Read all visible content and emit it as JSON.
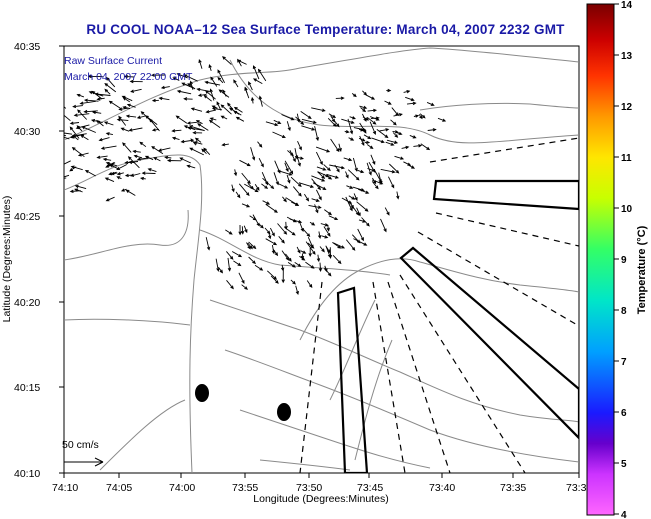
{
  "title": "RU COOL  NOAA–12  Sea Surface Temperature:  March 04, 2007 2232 GMT",
  "legend": {
    "line1": "Raw Surface Current",
    "line2": "March 04, 2007 22:00 GMT"
  },
  "scale_label": "50 cm/s",
  "x_axis": {
    "label": "Longitude (Degrees:Minutes)",
    "ticks": [
      "74:10",
      "74:05",
      "74:00",
      "73:55",
      "73:50",
      "73:45",
      "73:40",
      "73:35",
      "73:3"
    ]
  },
  "y_axis": {
    "label": "Latitude (Degrees:Minutes)",
    "ticks": [
      "40:35",
      "40:30",
      "40:25",
      "40:20",
      "40:15",
      "40:10"
    ]
  },
  "colorbar": {
    "label": "Temperature (°C)",
    "ticks": [
      "14",
      "13",
      "12",
      "11",
      "10",
      "9",
      "8",
      "7",
      "6",
      "5",
      "4"
    ],
    "colors": [
      "#7a0000",
      "#cc0000",
      "#ff3300",
      "#ff9900",
      "#ffe600",
      "#c8ff00",
      "#33ff66",
      "#00e6c8",
      "#00a0ff",
      "#1a1aff",
      "#6600cc",
      "#cc33ff",
      "#ff66ff"
    ]
  },
  "colors": {
    "title": "#1a1aa6",
    "coast": "#808080",
    "vectors": "#000000"
  }
}
